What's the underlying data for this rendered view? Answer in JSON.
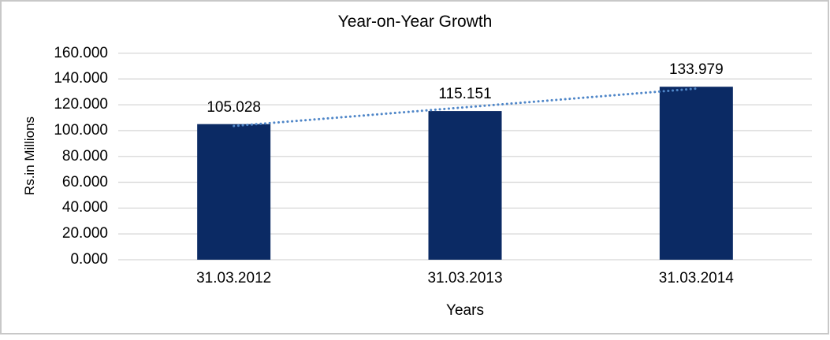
{
  "chart_data": {
    "type": "bar",
    "title": "Year-on-Year Growth",
    "xlabel": "Years",
    "ylabel": "Rs.in Millions",
    "categories": [
      "31.03.2012",
      "31.03.2013",
      "31.03.2014"
    ],
    "values": [
      105.028,
      115.151,
      133.979
    ],
    "data_labels": [
      "105.028",
      "115.151",
      "133.979"
    ],
    "ylim": [
      0,
      160
    ],
    "ytick_step": 20,
    "ytick_labels": [
      "0.000",
      "20.000",
      "40.000",
      "60.000",
      "80.000",
      "100.000",
      "120.000",
      "140.000",
      "160.000"
    ],
    "grid": true,
    "legend_position": "none",
    "trendline": {
      "type": "linear",
      "style": "dotted"
    },
    "colors": {
      "bar": "#0b2a64",
      "trendline": "#4f86c8",
      "gridline": "#d7d7d7",
      "frame_border": "#c8c8c8",
      "text": "#000000",
      "background": "#ffffff"
    }
  }
}
